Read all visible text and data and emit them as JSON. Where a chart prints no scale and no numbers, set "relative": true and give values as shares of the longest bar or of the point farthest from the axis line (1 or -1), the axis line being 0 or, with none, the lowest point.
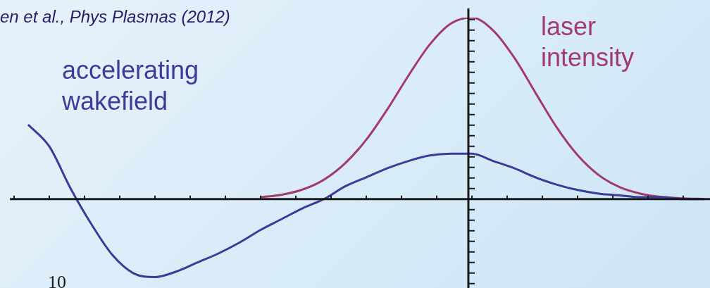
{
  "chart_data": {
    "type": "line",
    "relative": true,
    "legend": false,
    "grid": false,
    "marker": "none",
    "line_style": "solid",
    "annotations": [
      "en et al., Phys Plasmas (2012)",
      "10"
    ],
    "categories": [
      null,
      null,
      null,
      null,
      null,
      null,
      null,
      null,
      null,
      null,
      null,
      null,
      null,
      null,
      null,
      null,
      null,
      null,
      null,
      null,
      null,
      null,
      null,
      null,
      null,
      null,
      null,
      null,
      null,
      null,
      null,
      null,
      null
    ],
    "series": [
      {
        "name": "accelerating wakefield",
        "color": "#3b3b9c",
        "values": [
          0.41,
          0.29,
          0.06,
          -0.14,
          -0.31,
          -0.41,
          -0.43,
          -0.4,
          -0.35,
          -0.3,
          -0.24,
          -0.17,
          -0.11,
          -0.05,
          0,
          0.07,
          0.12,
          0.17,
          0.21,
          0.24,
          0.25,
          0.25,
          0.21,
          0.17,
          0.12,
          0.08,
          0.05,
          0.03,
          0.02,
          0.01,
          0.01,
          0,
          0
        ]
      },
      {
        "name": "laser intensity",
        "color": "#a23a6c",
        "values": [
          null,
          null,
          null,
          null,
          null,
          null,
          null,
          null,
          null,
          null,
          null,
          0.01,
          0.024,
          0.053,
          0.107,
          0.197,
          0.327,
          0.495,
          0.681,
          0.851,
          0.967,
          1,
          0.93,
          0.78,
          0.587,
          0.397,
          0.242,
          0.132,
          0.065,
          0.029,
          0.011,
          0.004,
          0
        ]
      }
    ]
  }
}
